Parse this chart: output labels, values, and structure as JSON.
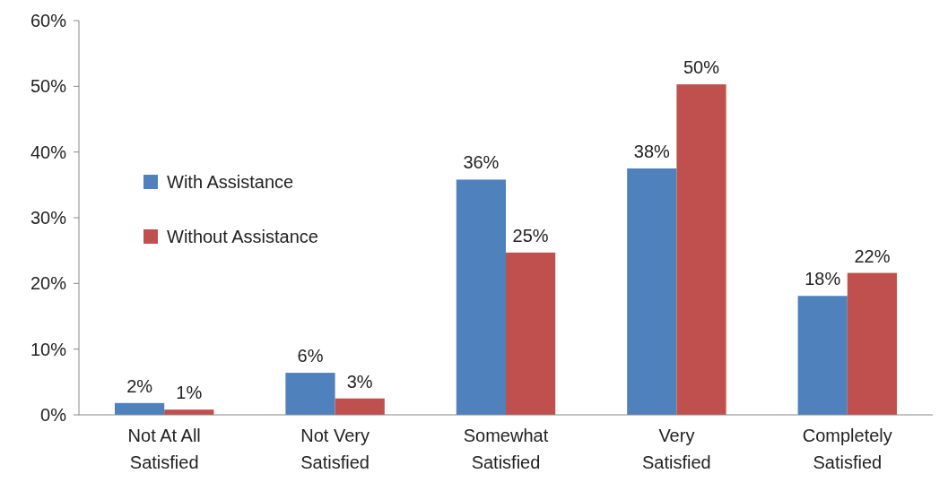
{
  "chart_data": {
    "type": "bar",
    "categories": [
      "Not At All Satisfied",
      "Not Very Satisfied",
      "Somewhat Satisfied",
      "Very Satisfied",
      "Completely Satisfied"
    ],
    "series": [
      {
        "name": "With Assistance",
        "color": "#4f81bd",
        "values": [
          1.8,
          6.4,
          35.8,
          37.5,
          18.1
        ],
        "value_labels": [
          "2%",
          "6%",
          "36%",
          "38%",
          "18%"
        ]
      },
      {
        "name": "Without Assistance",
        "color": "#c0504d",
        "values": [
          0.8,
          2.5,
          24.7,
          50.3,
          21.6
        ],
        "value_labels": [
          "1%",
          "3%",
          "25%",
          "50%",
          "22%"
        ]
      }
    ],
    "ylim": [
      0,
      60
    ],
    "yticks": [
      {
        "value": 0,
        "label": "0%"
      },
      {
        "value": 10,
        "label": "10%"
      },
      {
        "value": 20,
        "label": "20%"
      },
      {
        "value": 30,
        "label": "30%"
      },
      {
        "value": 40,
        "label": "40%"
      },
      {
        "value": 50,
        "label": "50%"
      },
      {
        "value": 60,
        "label": "60%"
      }
    ],
    "grid": false,
    "legend": "left"
  }
}
